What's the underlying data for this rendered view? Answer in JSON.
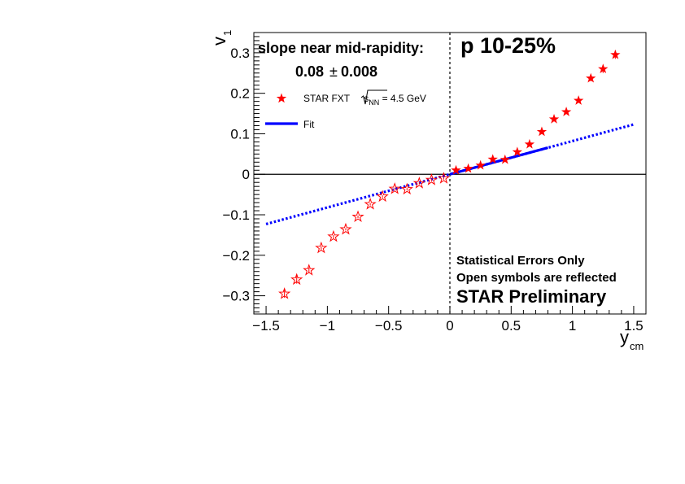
{
  "chart_data": {
    "type": "scatter",
    "xlabel": {
      "main": "y",
      "sub": "cm"
    },
    "ylabel": {
      "main": "v",
      "sub": "1"
    },
    "xlim": [
      -1.6,
      1.6
    ],
    "ylim": [
      -0.345,
      0.35
    ],
    "x_ticks": [
      -1.5,
      -1,
      -0.5,
      0,
      0.5,
      1,
      1.5
    ],
    "x_tick_labels": [
      "−1.5",
      "−1",
      "−0.5",
      "0",
      "0.5",
      "1",
      "1.5"
    ],
    "y_ticks": [
      -0.3,
      -0.2,
      -0.1,
      0,
      0.1,
      0.2,
      0.3
    ],
    "y_tick_labels": [
      "−0.3",
      "−0.2",
      "−0.1",
      "0",
      "0.1",
      "0.2",
      "0.3"
    ],
    "series": [
      {
        "name": "STAR FXT √s_NN = 4.5 GeV",
        "marker": "filled-star",
        "color": "#ff0000",
        "x": [
          0.05,
          0.15,
          0.25,
          0.35,
          0.45,
          0.55,
          0.65,
          0.75,
          0.85,
          0.95,
          1.05,
          1.15,
          1.25,
          1.35
        ],
        "y": [
          0.01,
          0.014,
          0.022,
          0.037,
          0.036,
          0.055,
          0.074,
          0.105,
          0.136,
          0.154,
          0.182,
          0.237,
          0.26,
          0.295
        ],
        "err": [
          0.003,
          0.003,
          0.003,
          0.003,
          0.003,
          0.003,
          0.003,
          0.003,
          0.003,
          0.004,
          0.004,
          0.007,
          0.01,
          0.01
        ]
      },
      {
        "name": "reflected",
        "marker": "open-star",
        "color": "#ff0000",
        "x": [
          -0.05,
          -0.15,
          -0.25,
          -0.35,
          -0.45,
          -0.55,
          -0.65,
          -0.75,
          -0.85,
          -0.95,
          -1.05,
          -1.15,
          -1.25,
          -1.35
        ],
        "y": [
          -0.01,
          -0.014,
          -0.022,
          -0.037,
          -0.036,
          -0.055,
          -0.074,
          -0.105,
          -0.136,
          -0.154,
          -0.182,
          -0.237,
          -0.26,
          -0.295
        ],
        "err": [
          0.003,
          0.003,
          0.003,
          0.003,
          0.003,
          0.003,
          0.003,
          0.003,
          0.003,
          0.004,
          0.004,
          0.007,
          0.01,
          0.01
        ]
      }
    ],
    "fit": {
      "name": "Fit",
      "color": "#0000ff",
      "slope": 0.082,
      "intercept": 0.0,
      "solid_range": [
        0,
        0.8
      ],
      "dotted_range": [
        -1.5,
        1.5
      ]
    },
    "reference_lines": {
      "horizontal_y": 0,
      "vertical_x": 0
    },
    "grid": false,
    "legend_placement": "top-left",
    "annotations": {
      "slope_title": "slope near mid-rapidity:",
      "slope_value": "0.08",
      "slope_pm": "±",
      "slope_error": "0.008",
      "centrality": "p 10-25%",
      "note1": "Statistical Errors Only",
      "note2": "Open symbols are reflected",
      "prelim": "STAR Preliminary"
    },
    "legend": {
      "data_prefix": "STAR FXT ",
      "data_s": "s",
      "data_sub": "NN",
      "data_suffix": " = 4.5 GeV",
      "fit_label": "Fit"
    }
  }
}
